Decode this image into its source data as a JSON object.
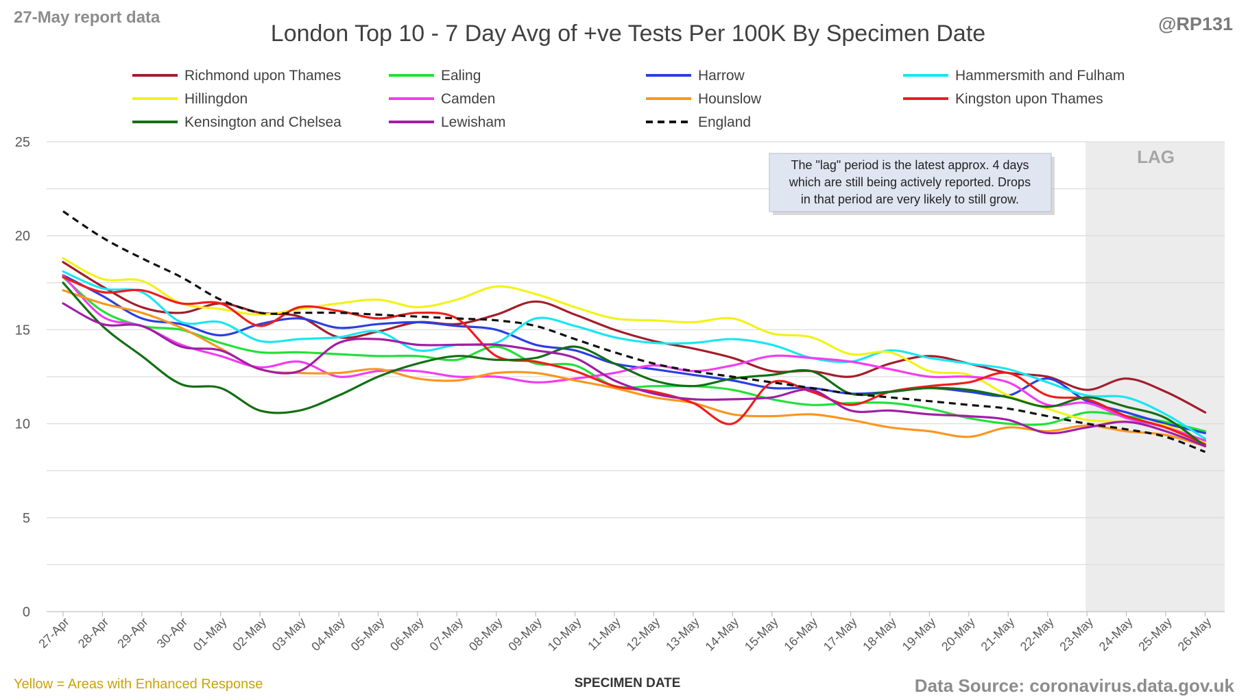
{
  "report_label": "27-May report data",
  "handle": "@RP131",
  "footer_left": "Yellow = Areas with Enhanced Response",
  "footer_right": "Data Source: coronavirus.data.gov.uk",
  "lag_note": [
    "The \"lag\" period is the latest approx. 4 days",
    "which are still being actively reported.  Drops",
    "in that period are very likely to still grow."
  ],
  "colors": {
    "footer_left": "#c9a400",
    "muted_text": "#8c8c8c",
    "lag_shade": "#ececec",
    "note_bg": "#dfe5f1"
  },
  "chart_data": {
    "type": "line",
    "title": "London Top 10 - 7 Day Avg of +ve Tests Per 100K By Specimen Date",
    "xlabel": "SPECIMEN DATE",
    "ylabel": "",
    "ylim": [
      0,
      25
    ],
    "yticks": [
      0,
      5,
      10,
      15,
      20,
      25
    ],
    "grid": true,
    "legend": "top",
    "lag_label": "LAG",
    "lag_start": "23-May",
    "x": [
      "27-Apr",
      "28-Apr",
      "29-Apr",
      "30-Apr",
      "01-May",
      "02-May",
      "03-May",
      "04-May",
      "05-May",
      "06-May",
      "07-May",
      "08-May",
      "09-May",
      "10-May",
      "11-May",
      "12-May",
      "13-May",
      "14-May",
      "15-May",
      "16-May",
      "17-May",
      "18-May",
      "19-May",
      "20-May",
      "21-May",
      "22-May",
      "23-May",
      "24-May",
      "25-May",
      "26-May"
    ],
    "series": [
      {
        "name": "Richmond upon Thames",
        "color": "#a31d2b",
        "dash": false,
        "values": [
          18.6,
          17.3,
          16.2,
          15.9,
          16.4,
          15.9,
          15.7,
          14.6,
          14.9,
          15.4,
          15.3,
          15.8,
          16.5,
          15.8,
          15.0,
          14.4,
          14.0,
          13.5,
          12.8,
          12.8,
          12.5,
          13.2,
          13.6,
          13.2,
          12.7,
          12.5,
          11.8,
          12.4,
          11.7,
          10.6
        ]
      },
      {
        "name": "Ealing",
        "color": "#22e03a",
        "dash": false,
        "values": [
          17.8,
          16.0,
          15.2,
          15.0,
          14.3,
          13.8,
          13.8,
          13.7,
          13.6,
          13.6,
          13.4,
          14.1,
          13.2,
          13.1,
          12.0,
          12.0,
          12.0,
          11.8,
          11.3,
          11.0,
          11.1,
          11.1,
          10.8,
          10.3,
          10.0,
          10.0,
          10.6,
          10.4,
          10.1,
          9.6
        ]
      },
      {
        "name": "Harrow",
        "color": "#2b3fe0",
        "dash": false,
        "values": [
          17.9,
          16.8,
          15.6,
          15.3,
          14.7,
          15.3,
          15.6,
          15.1,
          15.3,
          15.4,
          15.2,
          15.0,
          14.2,
          13.9,
          13.2,
          12.9,
          12.6,
          12.3,
          11.9,
          11.9,
          11.6,
          11.7,
          11.9,
          11.7,
          11.5,
          12.4,
          11.2,
          10.6,
          10.0,
          9.5
        ]
      },
      {
        "name": "Hammersmith and Fulham",
        "color": "#19e6f0",
        "dash": false,
        "values": [
          18.1,
          17.2,
          17.0,
          15.4,
          15.4,
          14.4,
          14.5,
          14.6,
          14.9,
          13.9,
          14.2,
          14.3,
          15.6,
          15.2,
          14.6,
          14.3,
          14.3,
          14.5,
          14.2,
          13.5,
          13.3,
          13.9,
          13.5,
          13.2,
          12.9,
          12.2,
          11.5,
          11.4,
          10.5,
          9.2
        ]
      },
      {
        "name": "Hillingdon",
        "color": "#f2f21a",
        "dash": false,
        "values": [
          18.8,
          17.7,
          17.6,
          16.4,
          16.1,
          15.8,
          16.1,
          16.4,
          16.6,
          16.2,
          16.6,
          17.3,
          16.9,
          16.2,
          15.6,
          15.5,
          15.4,
          15.6,
          14.8,
          14.6,
          13.7,
          13.8,
          12.8,
          12.6,
          11.5,
          10.8,
          10.2,
          10.1,
          9.9,
          9.0
        ]
      },
      {
        "name": "Camden",
        "color": "#f23cf2",
        "dash": false,
        "values": [
          17.9,
          15.7,
          15.2,
          14.2,
          13.6,
          13.0,
          13.3,
          12.5,
          12.8,
          12.8,
          12.5,
          12.5,
          12.2,
          12.4,
          12.7,
          13.1,
          12.8,
          13.1,
          13.6,
          13.5,
          13.3,
          12.9,
          12.5,
          12.5,
          12.2,
          11.0,
          11.1,
          10.3,
          9.8,
          9.1
        ]
      },
      {
        "name": "Hounslow",
        "color": "#fa961e",
        "dash": false,
        "values": [
          17.1,
          16.4,
          15.9,
          15.1,
          14.0,
          12.9,
          12.7,
          12.7,
          12.9,
          12.4,
          12.3,
          12.7,
          12.7,
          12.3,
          11.9,
          11.4,
          11.1,
          10.5,
          10.4,
          10.5,
          10.2,
          9.8,
          9.6,
          9.3,
          9.8,
          9.6,
          9.9,
          9.6,
          9.4,
          8.8
        ]
      },
      {
        "name": "Kingston upon Thames",
        "color": "#f01c1c",
        "dash": false,
        "values": [
          17.8,
          17.0,
          17.1,
          16.4,
          16.4,
          15.2,
          16.2,
          16.0,
          15.6,
          15.9,
          15.6,
          13.6,
          13.3,
          12.8,
          12.0,
          11.7,
          11.1,
          10.0,
          12.2,
          11.7,
          11.0,
          11.7,
          12.0,
          12.2,
          12.7,
          11.5,
          11.3,
          10.4,
          9.8,
          8.9
        ]
      },
      {
        "name": "Kensington and Chelsea",
        "color": "#146e14",
        "dash": false,
        "values": [
          17.5,
          15.2,
          13.6,
          12.1,
          11.9,
          10.7,
          10.7,
          11.5,
          12.5,
          13.2,
          13.6,
          13.4,
          13.5,
          14.1,
          13.2,
          12.3,
          12.0,
          12.4,
          12.6,
          12.8,
          11.6,
          11.7,
          11.9,
          11.8,
          11.4,
          10.9,
          11.4,
          10.9,
          10.3,
          8.8
        ]
      },
      {
        "name": "Lewisham",
        "color": "#a01ea5",
        "dash": false,
        "values": [
          16.4,
          15.3,
          15.2,
          14.1,
          13.9,
          12.9,
          12.8,
          14.3,
          14.5,
          14.2,
          14.2,
          14.2,
          13.9,
          13.5,
          12.3,
          11.6,
          11.3,
          11.3,
          11.4,
          11.8,
          10.7,
          10.7,
          10.5,
          10.4,
          10.2,
          9.5,
          9.8,
          10.1,
          9.6,
          8.8
        ]
      },
      {
        "name": "England",
        "color": "#111111",
        "dash": true,
        "values": [
          21.3,
          19.9,
          18.8,
          17.8,
          16.6,
          15.9,
          15.9,
          15.9,
          15.8,
          15.7,
          15.6,
          15.5,
          15.2,
          14.5,
          13.8,
          13.2,
          12.8,
          12.5,
          12.2,
          11.9,
          11.6,
          11.4,
          11.2,
          11.0,
          10.8,
          10.4,
          10.0,
          9.7,
          9.3,
          8.5
        ]
      }
    ]
  }
}
